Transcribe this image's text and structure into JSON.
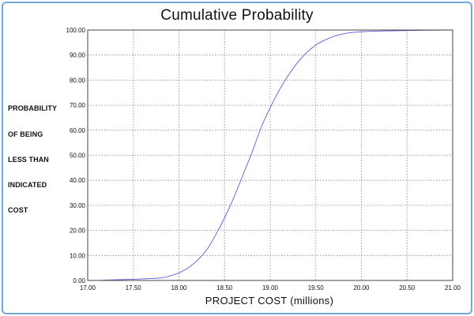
{
  "chart_data": {
    "type": "line",
    "title": "Cumulative  Probability",
    "xlabel": "PROJECT COST  (millions)",
    "ylabel_lines": [
      "PROBABILITY",
      "OF BEING",
      "LESS THAN",
      "INDICATED",
      "COST"
    ],
    "xlim": [
      17.0,
      21.0
    ],
    "ylim": [
      0,
      100
    ],
    "x_ticks": [
      "17.00",
      "17.50",
      "18.00",
      "18.50",
      "19.00",
      "19.50",
      "20.00",
      "20.50",
      "21.00"
    ],
    "y_ticks": [
      "0.00",
      "10.00",
      "20.00",
      "30.00",
      "40.00",
      "50.00",
      "60.00",
      "70.00",
      "80.00",
      "90.00",
      "100.00"
    ],
    "grid": true,
    "line_color": "#5b5bd6",
    "series": [
      {
        "x": [
          17.1,
          17.5,
          17.8,
          17.9,
          18.0,
          18.1,
          18.2,
          18.3,
          18.4,
          18.5,
          18.6,
          18.7,
          18.8,
          18.9,
          19.0,
          19.1,
          19.2,
          19.3,
          19.4,
          19.5,
          19.6,
          19.7,
          19.8,
          19.9,
          20.0,
          20.2,
          20.5,
          21.0
        ],
        "y": [
          0.0,
          0.5,
          1.0,
          1.8,
          3.0,
          5.0,
          8.0,
          12.0,
          18.0,
          25.0,
          33.0,
          42.0,
          51.0,
          61.0,
          69.0,
          76.0,
          82.0,
          87.0,
          91.0,
          94.0,
          96.0,
          97.5,
          98.5,
          99.0,
          99.3,
          99.6,
          99.8,
          100.0
        ]
      }
    ]
  }
}
